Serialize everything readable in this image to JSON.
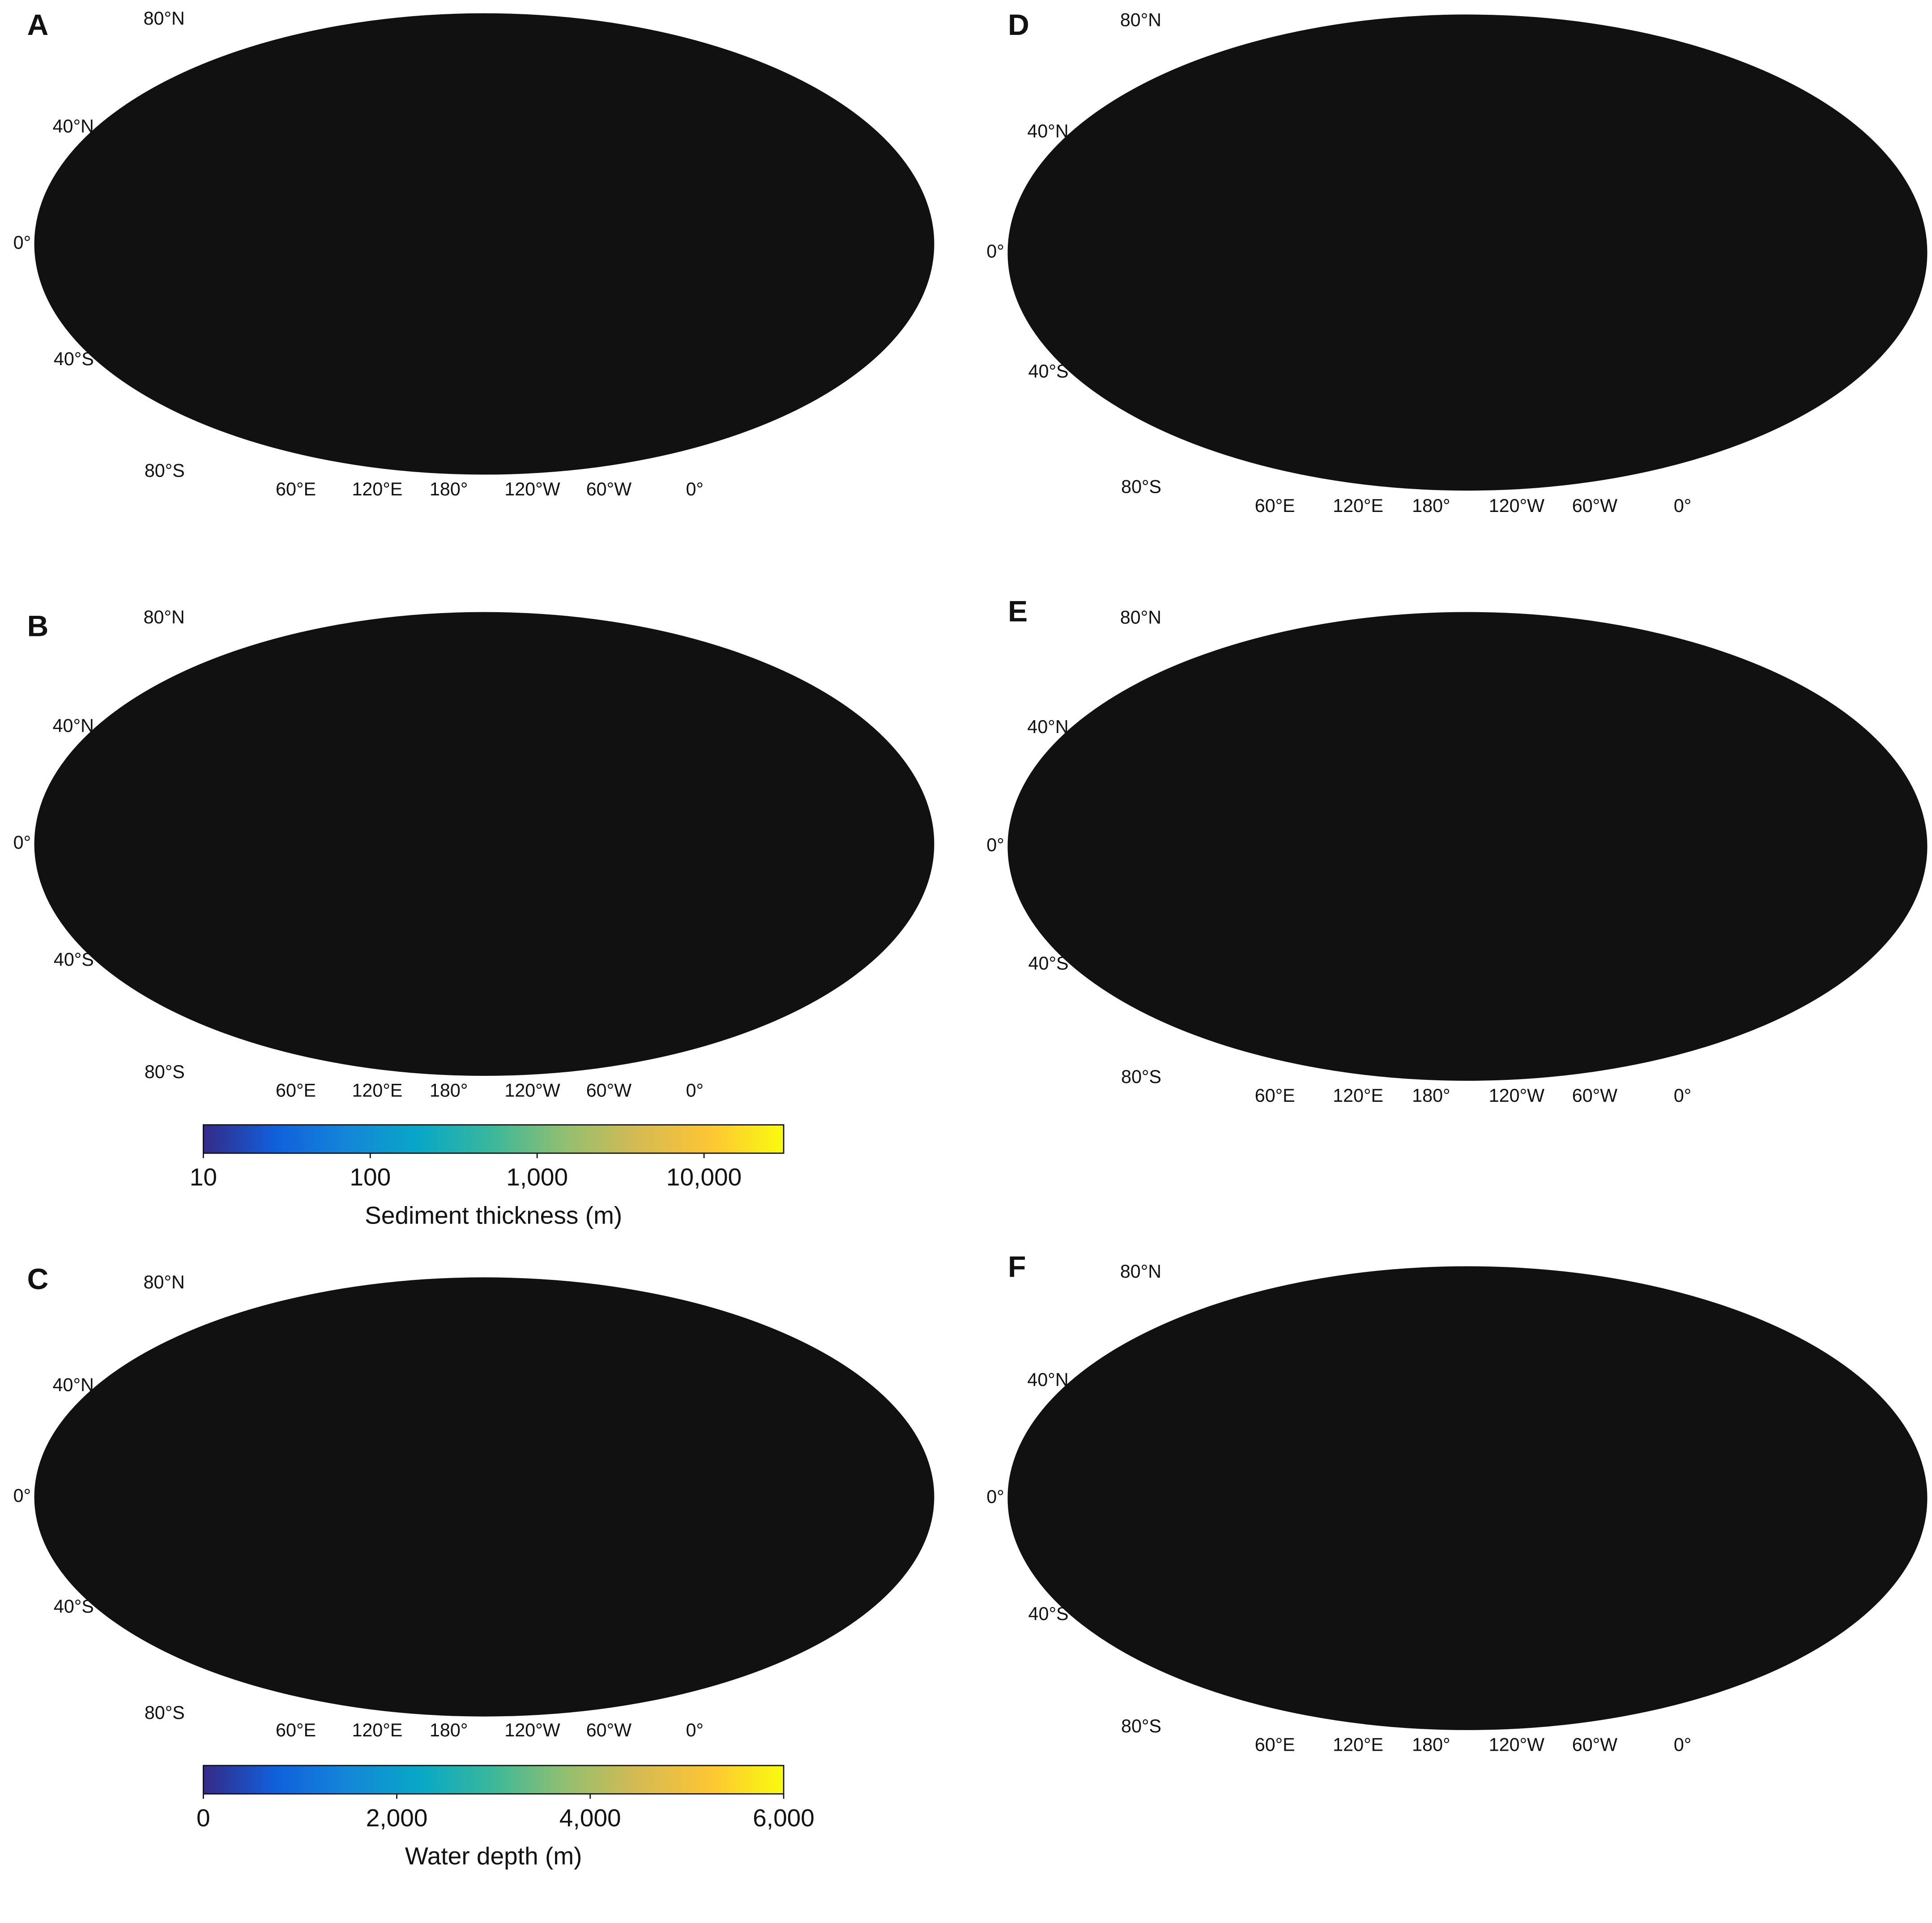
{
  "panels": [
    {
      "label": "A"
    },
    {
      "label": "B",
      "colorbar": {
        "title": "Sediment thickness (m)",
        "log": true,
        "lim": [
          10,
          30000
        ],
        "ticks": [
          10,
          100,
          {
            "value": 1000,
            "label": "1,000"
          },
          {
            "value": 10000,
            "label": "10,000"
          }
        ],
        "colors": [
          "#352a87",
          "#1060dc",
          "#1487d8",
          "#08a8c6",
          "#3cb89a",
          "#93bf70",
          "#d6ba52",
          "#fdc634",
          "#f9fb0e"
        ]
      }
    },
    {
      "label": "C",
      "colorbar": {
        "title": "Water depth (m)",
        "log": false,
        "lim": [
          0,
          6000
        ],
        "ticks": [
          0,
          {
            "value": 2000,
            "label": "2,000"
          },
          {
            "value": 4000,
            "label": "4,000"
          },
          {
            "value": 6000,
            "label": "6,000"
          }
        ],
        "colors": [
          "#352a87",
          "#1060dc",
          "#1487d8",
          "#08a8c6",
          "#3cb89a",
          "#93bf70",
          "#d6ba52",
          "#fdc634",
          "#f9fb0e"
        ]
      }
    },
    {
      "label": "D"
    },
    {
      "label": "E"
    },
    {
      "label": "F"
    }
  ],
  "lat_labels": [
    "80°N",
    "40°N",
    "0°",
    "40°S",
    "80°S"
  ],
  "lon_labels": [
    "60°E",
    "120°E",
    "180°",
    "120°W",
    "60°W",
    "0°"
  ]
}
